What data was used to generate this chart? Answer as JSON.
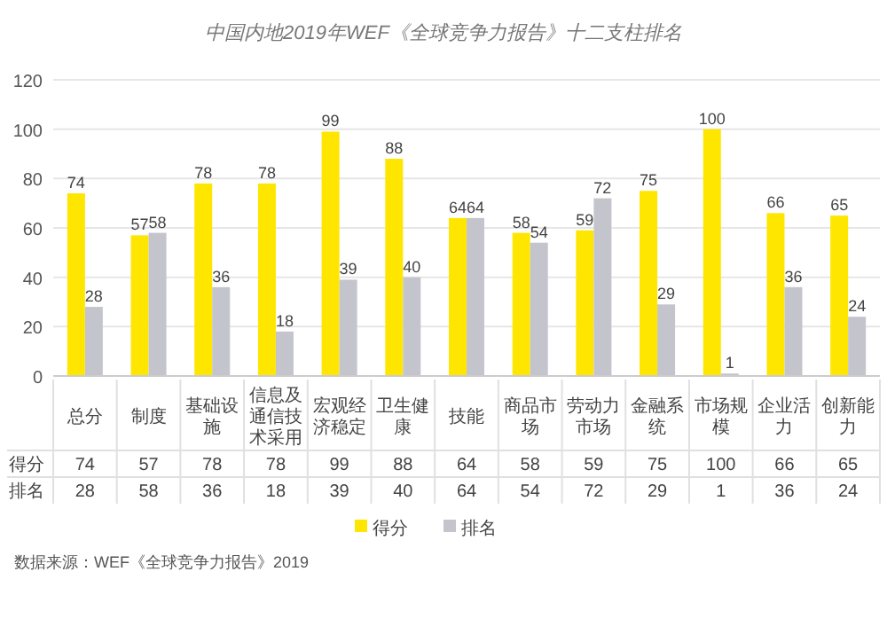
{
  "chart_data": {
    "type": "bar",
    "title": "中国内地2019年WEF《全球竞争力报告》十二支柱排名",
    "categories": [
      "总分",
      "制度",
      "基础设施",
      "信息及通信技术采用",
      "宏观经济稳定",
      "卫生健康",
      "技能",
      "商品市场",
      "劳动力市场",
      "金融系统",
      "市场规模",
      "企业活力",
      "创新能力"
    ],
    "series": [
      {
        "name": "得分",
        "color": "#ffe600",
        "values": [
          74,
          57,
          78,
          78,
          99,
          88,
          64,
          58,
          59,
          75,
          100,
          66,
          65
        ],
        "value_labels": [
          "74",
          "57",
          "78",
          "78",
          "99",
          "88",
          "64",
          "58",
          "59",
          "75",
          "100",
          "66",
          "65"
        ]
      },
      {
        "name": "排名",
        "color": "#c4c4cd",
        "values": [
          28,
          58,
          36,
          18,
          39,
          40,
          64,
          54,
          72,
          29,
          1,
          36,
          24
        ],
        "value_labels": [
          "28",
          "58",
          "36",
          "18",
          "39",
          "40",
          "64",
          "54",
          "72",
          "29",
          "1",
          "36",
          "24"
        ]
      }
    ],
    "ylim": [
      0,
      120
    ],
    "yticks": [
      0,
      20,
      40,
      60,
      80,
      100,
      120
    ],
    "grid": "y",
    "legend": "bottom",
    "data_labels": true,
    "annotations": [
      "数据来源：WEF《全球竞争力报告》2019"
    ]
  }
}
